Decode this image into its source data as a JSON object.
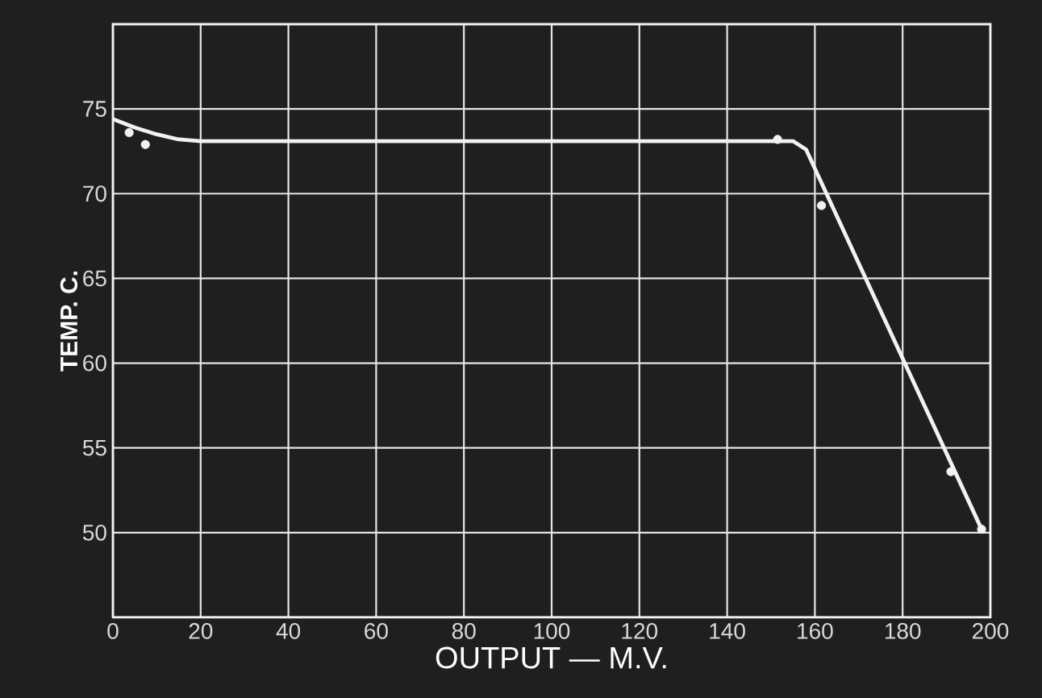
{
  "chart_data": {
    "type": "line",
    "xlabel": "OUTPUT — M.V.",
    "ylabel": "TEMP. C.",
    "xlim": [
      0,
      200
    ],
    "ylim": [
      45,
      80
    ],
    "xticks": [
      0,
      20,
      40,
      60,
      80,
      100,
      120,
      140,
      160,
      180,
      200
    ],
    "yticks": [
      {
        "value": 45,
        "label": null
      },
      50,
      55,
      60,
      65,
      70,
      75,
      {
        "value": 80,
        "label": null
      }
    ],
    "grid": true,
    "line_style": "solid",
    "marker": "none",
    "series": [
      {
        "color": "#f2f2f2",
        "x": [
          0,
          5,
          10,
          15,
          20,
          155,
          158,
          198
        ],
        "values": [
          74.4,
          73.9,
          73.5,
          73.2,
          73.1,
          73.1,
          72.6,
          50.2
        ]
      },
      {
        "type": "scatter",
        "marker": "circle",
        "color": "#f2f2f2",
        "x": [
          3.7,
          7.4,
          151.5,
          161.5,
          191,
          198
        ],
        "values": [
          73.6,
          72.9,
          73.2,
          69.3,
          53.6,
          50.2
        ]
      }
    ]
  }
}
